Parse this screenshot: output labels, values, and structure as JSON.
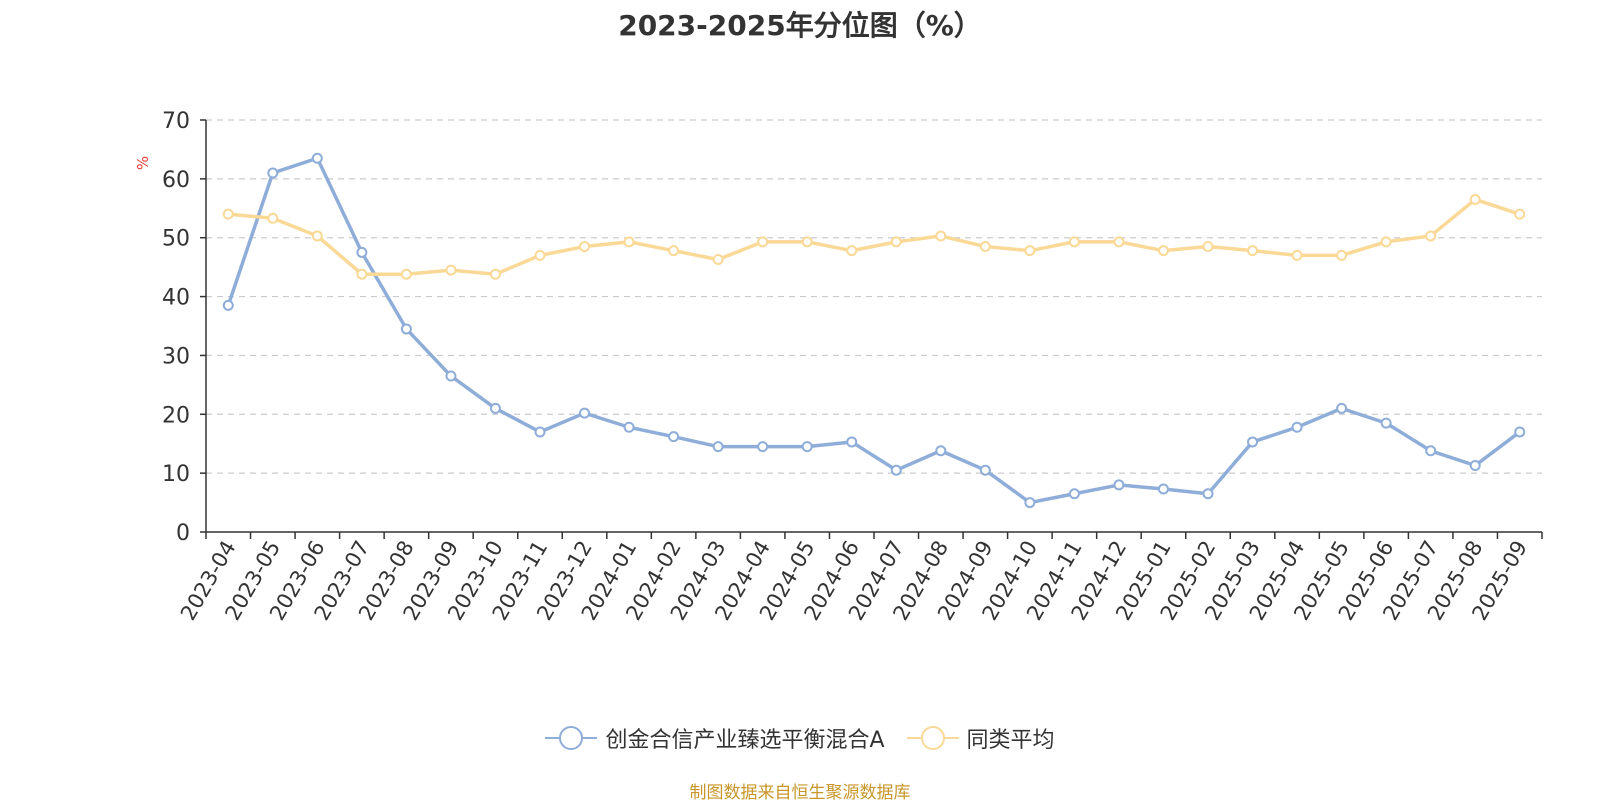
{
  "chart_data": {
    "type": "line",
    "title": "2023-2025年分位图（%）",
    "ylabel": "%",
    "xlabel": "",
    "ylim": [
      0,
      70
    ],
    "yticks": [
      0,
      10,
      20,
      30,
      40,
      50,
      60,
      70
    ],
    "grid": true,
    "legend_position": "bottom",
    "categories": [
      "2023-04",
      "2023-05",
      "2023-06",
      "2023-07",
      "2023-08",
      "2023-09",
      "2023-10",
      "2023-11",
      "2023-12",
      "2024-01",
      "2024-02",
      "2024-03",
      "2024-04",
      "2024-05",
      "2024-06",
      "2024-07",
      "2024-08",
      "2024-09",
      "2024-10",
      "2024-11",
      "2024-12",
      "2025-01",
      "2025-02",
      "2025-03",
      "2025-04",
      "2025-05",
      "2025-06",
      "2025-07",
      "2025-08",
      "2025-09"
    ],
    "series": [
      {
        "name": "创金合信产业臻选平衡混合A",
        "color": "#8eadd8",
        "values": [
          38.5,
          61.0,
          63.5,
          47.5,
          34.5,
          26.5,
          21.0,
          17.0,
          20.2,
          17.8,
          16.2,
          14.5,
          14.5,
          14.5,
          15.3,
          10.5,
          13.8,
          10.5,
          5.0,
          6.5,
          8.0,
          7.3,
          6.5,
          15.3,
          17.8,
          21.0,
          18.5,
          13.8,
          11.3,
          17.0
        ]
      },
      {
        "name": "同类平均",
        "color": "#fad896",
        "values": [
          54.0,
          53.3,
          50.3,
          43.8,
          43.8,
          44.5,
          43.8,
          47.0,
          48.5,
          49.3,
          47.8,
          46.3,
          49.3,
          49.3,
          47.8,
          49.3,
          50.3,
          48.5,
          47.8,
          49.3,
          49.3,
          47.8,
          48.5,
          47.8,
          47.0,
          47.0,
          49.3,
          50.3,
          56.5,
          54.0
        ]
      }
    ]
  },
  "footer": {
    "source": "制图数据来自恒生聚源数据库"
  }
}
